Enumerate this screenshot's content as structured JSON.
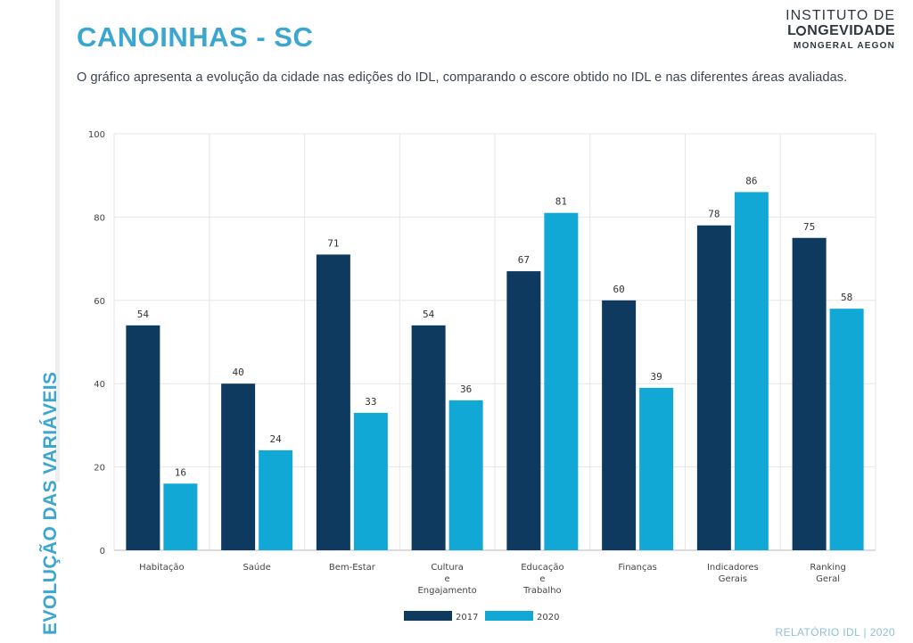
{
  "header": {
    "title": "CANOINHAS - SC",
    "subtitle": "O gráfico apresenta a evolução da cidade nas edições do IDL, comparando o escore obtido no IDL e nas diferentes áreas avaliadas."
  },
  "logo": {
    "line1": "INSTITUTO DE",
    "line2_rest": "NGEVIDADE",
    "line2_prefix": "L",
    "line3": "MONGERAL AEGON"
  },
  "side_label": "EVOLUÇÃO DAS VARIÁVEIS",
  "footer": "RELATÓRIO IDL | 2020",
  "colors": {
    "accent": "#3ba6cf",
    "series_2017": "#0d3a5e",
    "series_2020": "#12a8d6"
  },
  "chart_data": {
    "type": "bar",
    "categories": [
      [
        "Habitação"
      ],
      [
        "Saúde"
      ],
      [
        "Bem-Estar"
      ],
      [
        "Cultura",
        "e",
        "Engajamento"
      ],
      [
        "Educação",
        "e",
        "Trabalho"
      ],
      [
        "Finanças"
      ],
      [
        "Indicadores",
        "Gerais"
      ],
      [
        "Ranking",
        "Geral"
      ]
    ],
    "series": [
      {
        "name": "2017",
        "values": [
          54,
          40,
          71,
          54,
          67,
          60,
          78,
          75
        ]
      },
      {
        "name": "2020",
        "values": [
          16,
          24,
          33,
          36,
          81,
          39,
          86,
          58
        ]
      }
    ],
    "ylim": [
      0,
      100
    ],
    "yticks": [
      0,
      20,
      40,
      60,
      80,
      100
    ],
    "grid": true,
    "legend_position": "bottom-center"
  }
}
